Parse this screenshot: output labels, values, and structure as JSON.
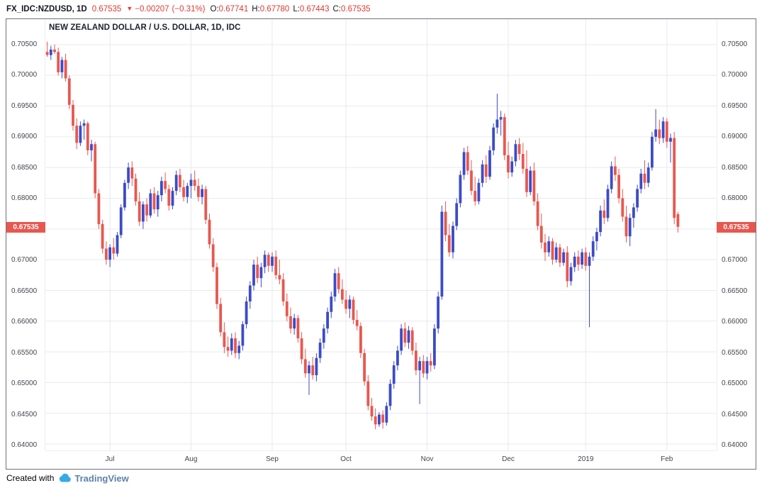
{
  "header": {
    "symbol": "FX_IDC:NZDUSD, 1D",
    "last_price": "0.67535",
    "direction": "▼",
    "change_abs": "−0.00207",
    "change_pct": "(−0.31%)",
    "ohlc": [
      {
        "label": "O:",
        "value": "0.67741"
      },
      {
        "label": "H:",
        "value": "0.67780"
      },
      {
        "label": "L:",
        "value": "0.67443"
      },
      {
        "label": "C:",
        "value": "0.67535"
      }
    ]
  },
  "chart": {
    "legend": "NEW ZEALAND DOLLAR / U.S. DOLLAR, 1D, IDC",
    "price_label": "0.67535"
  },
  "footer": {
    "created_with": "Created with",
    "brand": "TradingView",
    "cloud_icon": "tradingview-cloud-icon"
  },
  "colors": {
    "red": "#e03a30",
    "up": "#3b4bc8",
    "down": "#e8574f",
    "grid": "#e8eaee",
    "axis_text": "#42454c",
    "brand_cloud": "#38a9e6",
    "brand_text": "#5d82a8"
  },
  "chart_data": {
    "type": "candlestick",
    "title": "NEW ZEALAND DOLLAR / U.S. DOLLAR, 1D, IDC",
    "symbol": "FX_IDC:NZDUSD",
    "interval": "1D",
    "grid": true,
    "y_axis": {
      "min": 0.64,
      "max": 0.705,
      "step": 0.005,
      "tick_labels": [
        "0.70500",
        "0.70000",
        "0.69500",
        "0.69000",
        "0.68500",
        "0.68000",
        "0.67500",
        "0.67000",
        "0.66500",
        "0.66000",
        "0.65500",
        "0.65000",
        "0.64500",
        "0.64000"
      ]
    },
    "x_ticks": [
      {
        "label": "Jul",
        "index": 17
      },
      {
        "label": "Aug",
        "index": 39
      },
      {
        "label": "Sep",
        "index": 61
      },
      {
        "label": "Oct",
        "index": 81
      },
      {
        "label": "Nov",
        "index": 103
      },
      {
        "label": "Dec",
        "index": 125
      },
      {
        "label": "2019",
        "index": 146
      },
      {
        "label": "Feb",
        "index": 168
      }
    ],
    "last": {
      "open": 0.67741,
      "high": 0.6778,
      "low": 0.67443,
      "close": 0.67535,
      "change": -0.00207,
      "change_pct": -0.31
    },
    "ohlc": [
      [
        0.7038,
        0.7055,
        0.703,
        0.7033
      ],
      [
        0.7033,
        0.7048,
        0.7025,
        0.7042
      ],
      [
        0.7042,
        0.705,
        0.7035,
        0.7038
      ],
      [
        0.7038,
        0.7045,
        0.7,
        0.7005
      ],
      [
        0.7005,
        0.703,
        0.6995,
        0.7025
      ],
      [
        0.7025,
        0.7035,
        0.699,
        0.6995
      ],
      [
        0.6995,
        0.7,
        0.6945,
        0.6952
      ],
      [
        0.6952,
        0.696,
        0.691,
        0.6918
      ],
      [
        0.6918,
        0.693,
        0.688,
        0.689
      ],
      [
        0.689,
        0.6925,
        0.6885,
        0.6918
      ],
      [
        0.6918,
        0.6928,
        0.6895,
        0.6922
      ],
      [
        0.6922,
        0.6925,
        0.687,
        0.6878
      ],
      [
        0.6878,
        0.6895,
        0.686,
        0.6888
      ],
      [
        0.6888,
        0.6892,
        0.68,
        0.6808
      ],
      [
        0.6808,
        0.6815,
        0.675,
        0.6758
      ],
      [
        0.6758,
        0.6765,
        0.671,
        0.6718
      ],
      [
        0.6718,
        0.673,
        0.6692,
        0.67
      ],
      [
        0.67,
        0.6725,
        0.6688,
        0.672
      ],
      [
        0.672,
        0.6735,
        0.67,
        0.671
      ],
      [
        0.671,
        0.6745,
        0.6705,
        0.674
      ],
      [
        0.674,
        0.679,
        0.6735,
        0.6785
      ],
      [
        0.6785,
        0.683,
        0.678,
        0.6825
      ],
      [
        0.6825,
        0.6858,
        0.6815,
        0.685
      ],
      [
        0.685,
        0.686,
        0.682,
        0.6832
      ],
      [
        0.6832,
        0.684,
        0.6788,
        0.6795
      ],
      [
        0.6795,
        0.681,
        0.6755,
        0.6762
      ],
      [
        0.6762,
        0.6795,
        0.675,
        0.679
      ],
      [
        0.679,
        0.68,
        0.6762,
        0.6772
      ],
      [
        0.6772,
        0.6815,
        0.6768,
        0.6808
      ],
      [
        0.6808,
        0.6818,
        0.6775,
        0.6782
      ],
      [
        0.6782,
        0.6812,
        0.677,
        0.6805
      ],
      [
        0.6805,
        0.6835,
        0.6795,
        0.6828
      ],
      [
        0.6828,
        0.6842,
        0.6808,
        0.6815
      ],
      [
        0.6815,
        0.6822,
        0.678,
        0.6788
      ],
      [
        0.6788,
        0.6818,
        0.6782,
        0.6812
      ],
      [
        0.6812,
        0.6845,
        0.6805,
        0.6838
      ],
      [
        0.6838,
        0.6848,
        0.681,
        0.6818
      ],
      [
        0.6818,
        0.683,
        0.6795,
        0.6802
      ],
      [
        0.6802,
        0.6825,
        0.6792,
        0.682
      ],
      [
        0.682,
        0.684,
        0.68,
        0.683
      ],
      [
        0.683,
        0.6845,
        0.6812,
        0.682
      ],
      [
        0.682,
        0.6832,
        0.6795,
        0.6802
      ],
      [
        0.6802,
        0.6822,
        0.679,
        0.6815
      ],
      [
        0.6815,
        0.682,
        0.6758,
        0.6765
      ],
      [
        0.6765,
        0.6775,
        0.6718,
        0.6725
      ],
      [
        0.6725,
        0.6735,
        0.668,
        0.6688
      ],
      [
        0.6688,
        0.6695,
        0.662,
        0.6628
      ],
      [
        0.6628,
        0.6638,
        0.6575,
        0.6582
      ],
      [
        0.6582,
        0.6598,
        0.6548,
        0.6558
      ],
      [
        0.6558,
        0.6575,
        0.6542,
        0.6552
      ],
      [
        0.6552,
        0.658,
        0.6545,
        0.6572
      ],
      [
        0.6572,
        0.6582,
        0.654,
        0.6548
      ],
      [
        0.6548,
        0.6568,
        0.6538,
        0.656
      ],
      [
        0.656,
        0.66,
        0.6552,
        0.6595
      ],
      [
        0.6595,
        0.664,
        0.6588,
        0.6632
      ],
      [
        0.6632,
        0.6665,
        0.662,
        0.6658
      ],
      [
        0.6658,
        0.67,
        0.665,
        0.6692
      ],
      [
        0.6692,
        0.6705,
        0.6662,
        0.667
      ],
      [
        0.667,
        0.6695,
        0.6655,
        0.6688
      ],
      [
        0.6688,
        0.6715,
        0.6678,
        0.6708
      ],
      [
        0.6708,
        0.6712,
        0.668,
        0.669
      ],
      [
        0.669,
        0.6712,
        0.668,
        0.6705
      ],
      [
        0.6705,
        0.6715,
        0.6668,
        0.6675
      ],
      [
        0.6675,
        0.67,
        0.666,
        0.6668
      ],
      [
        0.6668,
        0.6678,
        0.6625,
        0.6632
      ],
      [
        0.6632,
        0.6645,
        0.66,
        0.6608
      ],
      [
        0.6608,
        0.6622,
        0.658,
        0.6588
      ],
      [
        0.6588,
        0.6612,
        0.6578,
        0.6605
      ],
      [
        0.6605,
        0.661,
        0.6565,
        0.6572
      ],
      [
        0.6572,
        0.6582,
        0.653,
        0.6538
      ],
      [
        0.6538,
        0.6555,
        0.6508,
        0.6515
      ],
      [
        0.6515,
        0.6535,
        0.648,
        0.6528
      ],
      [
        0.6528,
        0.6542,
        0.6505,
        0.6512
      ],
      [
        0.6512,
        0.6548,
        0.6502,
        0.654
      ],
      [
        0.654,
        0.6572,
        0.6532,
        0.6565
      ],
      [
        0.6565,
        0.6595,
        0.6555,
        0.6588
      ],
      [
        0.6588,
        0.6622,
        0.658,
        0.6615
      ],
      [
        0.6615,
        0.6648,
        0.6605,
        0.664
      ],
      [
        0.664,
        0.6685,
        0.6632,
        0.6678
      ],
      [
        0.6678,
        0.6688,
        0.6645,
        0.6652
      ],
      [
        0.6652,
        0.6668,
        0.6628,
        0.6635
      ],
      [
        0.6635,
        0.665,
        0.6612,
        0.662
      ],
      [
        0.662,
        0.6642,
        0.6605,
        0.6635
      ],
      [
        0.6635,
        0.664,
        0.6595,
        0.6602
      ],
      [
        0.6602,
        0.6618,
        0.6585,
        0.6592
      ],
      [
        0.6592,
        0.6598,
        0.654,
        0.6548
      ],
      [
        0.6548,
        0.6555,
        0.6495,
        0.6502
      ],
      [
        0.6502,
        0.6512,
        0.6455,
        0.6462
      ],
      [
        0.6462,
        0.6475,
        0.6438,
        0.6445
      ],
      [
        0.6445,
        0.6458,
        0.6424,
        0.6432
      ],
      [
        0.6432,
        0.6452,
        0.6428,
        0.6448
      ],
      [
        0.6448,
        0.6455,
        0.6425,
        0.6435
      ],
      [
        0.6435,
        0.6468,
        0.643,
        0.6462
      ],
      [
        0.6462,
        0.6505,
        0.6455,
        0.6498
      ],
      [
        0.6498,
        0.6535,
        0.649,
        0.6528
      ],
      [
        0.6528,
        0.656,
        0.652,
        0.6552
      ],
      [
        0.6552,
        0.6595,
        0.6545,
        0.6588
      ],
      [
        0.6588,
        0.6598,
        0.6558,
        0.6565
      ],
      [
        0.6565,
        0.6592,
        0.6555,
        0.6585
      ],
      [
        0.6585,
        0.659,
        0.6545,
        0.6552
      ],
      [
        0.6552,
        0.6565,
        0.6512,
        0.652
      ],
      [
        0.652,
        0.6542,
        0.6465,
        0.6535
      ],
      [
        0.6535,
        0.6545,
        0.6508,
        0.6515
      ],
      [
        0.6515,
        0.6542,
        0.6505,
        0.6535
      ],
      [
        0.6535,
        0.6548,
        0.6518,
        0.6528
      ],
      [
        0.6528,
        0.6595,
        0.6522,
        0.6588
      ],
      [
        0.6588,
        0.6648,
        0.658,
        0.664
      ],
      [
        0.664,
        0.6788,
        0.6635,
        0.6778
      ],
      [
        0.6778,
        0.6795,
        0.673,
        0.674
      ],
      [
        0.674,
        0.6758,
        0.6705,
        0.6712
      ],
      [
        0.6712,
        0.6762,
        0.6702,
        0.6755
      ],
      [
        0.6755,
        0.68,
        0.6748,
        0.6792
      ],
      [
        0.6792,
        0.6845,
        0.6785,
        0.6838
      ],
      [
        0.6838,
        0.6882,
        0.683,
        0.6875
      ],
      [
        0.6875,
        0.6885,
        0.6838,
        0.6845
      ],
      [
        0.6845,
        0.6862,
        0.6805,
        0.6812
      ],
      [
        0.6812,
        0.6835,
        0.6788,
        0.6795
      ],
      [
        0.6795,
        0.6832,
        0.679,
        0.6825
      ],
      [
        0.6825,
        0.6862,
        0.6818,
        0.6855
      ],
      [
        0.6855,
        0.687,
        0.6825,
        0.6835
      ],
      [
        0.6835,
        0.6885,
        0.683,
        0.6878
      ],
      [
        0.6878,
        0.6922,
        0.687,
        0.6915
      ],
      [
        0.6915,
        0.697,
        0.6905,
        0.6928
      ],
      [
        0.6928,
        0.6942,
        0.6902,
        0.6932
      ],
      [
        0.6932,
        0.6938,
        0.6862,
        0.687
      ],
      [
        0.687,
        0.6892,
        0.6832,
        0.6842
      ],
      [
        0.6842,
        0.6868,
        0.6835,
        0.686
      ],
      [
        0.686,
        0.6895,
        0.6852,
        0.6888
      ],
      [
        0.6888,
        0.6898,
        0.6862,
        0.6872
      ],
      [
        0.6872,
        0.689,
        0.684,
        0.6848
      ],
      [
        0.6848,
        0.6878,
        0.6802,
        0.681
      ],
      [
        0.681,
        0.6852,
        0.6805,
        0.6845
      ],
      [
        0.6845,
        0.6858,
        0.6788,
        0.6795
      ],
      [
        0.6795,
        0.6808,
        0.6748,
        0.6755
      ],
      [
        0.6755,
        0.6775,
        0.6718,
        0.6728
      ],
      [
        0.6728,
        0.6742,
        0.6698,
        0.6712
      ],
      [
        0.6712,
        0.6738,
        0.6705,
        0.673
      ],
      [
        0.673,
        0.6735,
        0.6692,
        0.67
      ],
      [
        0.67,
        0.6728,
        0.6695,
        0.672
      ],
      [
        0.672,
        0.6726,
        0.6688,
        0.6695
      ],
      [
        0.6695,
        0.6718,
        0.669,
        0.6712
      ],
      [
        0.6712,
        0.6722,
        0.6655,
        0.6665
      ],
      [
        0.6665,
        0.6695,
        0.6658,
        0.6688
      ],
      [
        0.6688,
        0.6712,
        0.668,
        0.6705
      ],
      [
        0.6705,
        0.6715,
        0.6682,
        0.6692
      ],
      [
        0.6692,
        0.6718,
        0.6685,
        0.6712
      ],
      [
        0.6712,
        0.672,
        0.6682,
        0.669
      ],
      [
        0.669,
        0.6712,
        0.659,
        0.6705
      ],
      [
        0.6705,
        0.6738,
        0.6698,
        0.673
      ],
      [
        0.673,
        0.6752,
        0.6715,
        0.6745
      ],
      [
        0.6745,
        0.6788,
        0.6738,
        0.678
      ],
      [
        0.678,
        0.6798,
        0.6758,
        0.6768
      ],
      [
        0.6768,
        0.6822,
        0.6762,
        0.6815
      ],
      [
        0.6815,
        0.686,
        0.6808,
        0.6852
      ],
      [
        0.6852,
        0.6868,
        0.6828,
        0.6838
      ],
      [
        0.6838,
        0.6848,
        0.6792,
        0.68
      ],
      [
        0.68,
        0.6815,
        0.6762,
        0.677
      ],
      [
        0.677,
        0.6788,
        0.6728,
        0.6738
      ],
      [
        0.6738,
        0.6775,
        0.6722,
        0.6768
      ],
      [
        0.6768,
        0.6792,
        0.6752,
        0.6785
      ],
      [
        0.6785,
        0.6822,
        0.6778,
        0.6815
      ],
      [
        0.6815,
        0.6848,
        0.6808,
        0.684
      ],
      [
        0.684,
        0.6862,
        0.6815,
        0.6825
      ],
      [
        0.6825,
        0.6858,
        0.6818,
        0.685
      ],
      [
        0.685,
        0.6908,
        0.6845,
        0.69
      ],
      [
        0.69,
        0.6945,
        0.6892,
        0.6912
      ],
      [
        0.6912,
        0.6928,
        0.6888,
        0.6898
      ],
      [
        0.6898,
        0.6932,
        0.689,
        0.6925
      ],
      [
        0.6925,
        0.693,
        0.6882,
        0.6892
      ],
      [
        0.6892,
        0.6905,
        0.6858,
        0.6898
      ],
      [
        0.6898,
        0.6908,
        0.6758,
        0.6768
      ],
      [
        0.67741,
        0.6778,
        0.67443,
        0.67535
      ]
    ]
  }
}
